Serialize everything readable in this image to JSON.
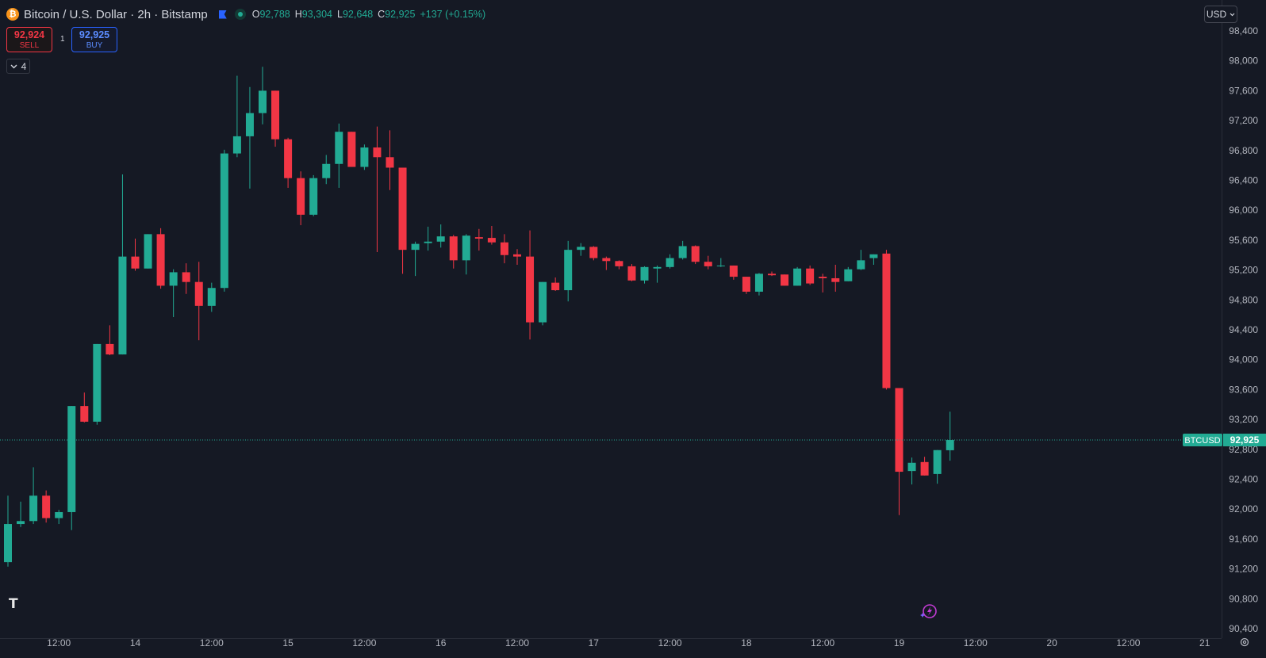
{
  "header": {
    "coin_icon": "bitcoin-icon",
    "symbol_title": "Bitcoin / U.S. Dollar · 2h · Bitstamp",
    "ohlc": [
      {
        "key": "O",
        "value": "92,788"
      },
      {
        "key": "H",
        "value": "93,304"
      },
      {
        "key": "L",
        "value": "92,648"
      },
      {
        "key": "C",
        "value": "92,925"
      }
    ],
    "change": "+137 (+0.15%)"
  },
  "trade": {
    "sell_price": "92,924",
    "sell_label": "SELL",
    "spread": "1",
    "buy_price": "92,925",
    "buy_label": "BUY"
  },
  "indicators_toggle": {
    "count": "4"
  },
  "currency_select": {
    "value": "USD"
  },
  "colors": {
    "background": "#151924",
    "up": "#22ab94",
    "down": "#f23645",
    "axis_text": "#b2b5be",
    "last_price_line": "#22ab94"
  },
  "chart_data": {
    "type": "candlestick",
    "symbol": "BTCUSD",
    "last_price": 92925,
    "last_price_label": "92,925",
    "y_axis": {
      "range": [
        90400,
        98400
      ],
      "ticks": [
        "98,400",
        "98,000",
        "97,600",
        "97,200",
        "96,800",
        "96,400",
        "96,000",
        "95,600",
        "95,200",
        "94,800",
        "94,400",
        "94,000",
        "93,600",
        "93,200",
        "92,800",
        "92,400",
        "92,000",
        "91,600",
        "91,200",
        "90,800",
        "90,400"
      ]
    },
    "x_axis": {
      "ticks": [
        {
          "label": "12:00",
          "bar": 4
        },
        {
          "label": "14",
          "bar": 10
        },
        {
          "label": "12:00",
          "bar": 16
        },
        {
          "label": "15",
          "bar": 22
        },
        {
          "label": "12:00",
          "bar": 28
        },
        {
          "label": "16",
          "bar": 34
        },
        {
          "label": "12:00",
          "bar": 40
        },
        {
          "label": "17",
          "bar": 46
        },
        {
          "label": "12:00",
          "bar": 52
        },
        {
          "label": "18",
          "bar": 58
        },
        {
          "label": "12:00",
          "bar": 64
        },
        {
          "label": "19",
          "bar": 70
        },
        {
          "label": "12:00",
          "bar": 76
        },
        {
          "label": "20",
          "bar": 82
        },
        {
          "label": "12:00",
          "bar": 88
        },
        {
          "label": "21",
          "bar": 94
        }
      ]
    },
    "grid": false,
    "candles": [
      {
        "o": 91290,
        "h": 92180,
        "l": 91230,
        "c": 91800
      },
      {
        "o": 91800,
        "h": 92100,
        "l": 91760,
        "c": 91840
      },
      {
        "o": 91840,
        "h": 92560,
        "l": 91800,
        "c": 92180
      },
      {
        "o": 92180,
        "h": 92250,
        "l": 91820,
        "c": 91880
      },
      {
        "o": 91880,
        "h": 91990,
        "l": 91800,
        "c": 91960
      },
      {
        "o": 91960,
        "h": 93380,
        "l": 91720,
        "c": 93380
      },
      {
        "o": 93380,
        "h": 93560,
        "l": 93160,
        "c": 93170
      },
      {
        "o": 93170,
        "h": 94210,
        "l": 93130,
        "c": 94210
      },
      {
        "o": 94210,
        "h": 94460,
        "l": 94060,
        "c": 94070
      },
      {
        "o": 94070,
        "h": 96480,
        "l": 94070,
        "c": 95380
      },
      {
        "o": 95380,
        "h": 95620,
        "l": 95190,
        "c": 95220
      },
      {
        "o": 95220,
        "h": 95680,
        "l": 95220,
        "c": 95680
      },
      {
        "o": 95680,
        "h": 95760,
        "l": 94950,
        "c": 94990
      },
      {
        "o": 94990,
        "h": 95210,
        "l": 94570,
        "c": 95170
      },
      {
        "o": 95170,
        "h": 95290,
        "l": 94880,
        "c": 95040
      },
      {
        "o": 95040,
        "h": 95310,
        "l": 94260,
        "c": 94720
      },
      {
        "o": 94720,
        "h": 95030,
        "l": 94640,
        "c": 94960
      },
      {
        "o": 94960,
        "h": 96810,
        "l": 94910,
        "c": 96760
      },
      {
        "o": 96760,
        "h": 97800,
        "l": 96710,
        "c": 96990
      },
      {
        "o": 96990,
        "h": 97650,
        "l": 96290,
        "c": 97300
      },
      {
        "o": 97300,
        "h": 97920,
        "l": 97150,
        "c": 97600
      },
      {
        "o": 97600,
        "h": 97600,
        "l": 96850,
        "c": 96950
      },
      {
        "o": 96950,
        "h": 96970,
        "l": 96300,
        "c": 96430
      },
      {
        "o": 96430,
        "h": 96520,
        "l": 95800,
        "c": 95940
      },
      {
        "o": 95940,
        "h": 96470,
        "l": 95920,
        "c": 96430
      },
      {
        "o": 96430,
        "h": 96740,
        "l": 96350,
        "c": 96620
      },
      {
        "o": 96620,
        "h": 97160,
        "l": 96300,
        "c": 97050
      },
      {
        "o": 97050,
        "h": 97050,
        "l": 96580,
        "c": 96580
      },
      {
        "o": 96580,
        "h": 96880,
        "l": 96540,
        "c": 96840
      },
      {
        "o": 96840,
        "h": 97120,
        "l": 95440,
        "c": 96710
      },
      {
        "o": 96710,
        "h": 97070,
        "l": 96270,
        "c": 96570
      },
      {
        "o": 96570,
        "h": 96570,
        "l": 95150,
        "c": 95470
      },
      {
        "o": 95470,
        "h": 95580,
        "l": 95120,
        "c": 95550
      },
      {
        "o": 95560,
        "h": 95780,
        "l": 95460,
        "c": 95580
      },
      {
        "o": 95580,
        "h": 95810,
        "l": 95500,
        "c": 95650
      },
      {
        "o": 95650,
        "h": 95670,
        "l": 95220,
        "c": 95330
      },
      {
        "o": 95330,
        "h": 95680,
        "l": 95140,
        "c": 95660
      },
      {
        "o": 95640,
        "h": 95750,
        "l": 95460,
        "c": 95620
      },
      {
        "o": 95630,
        "h": 95790,
        "l": 95540,
        "c": 95570
      },
      {
        "o": 95570,
        "h": 95680,
        "l": 95290,
        "c": 95400
      },
      {
        "o": 95410,
        "h": 95480,
        "l": 95270,
        "c": 95380
      },
      {
        "o": 95380,
        "h": 95730,
        "l": 94270,
        "c": 94500
      },
      {
        "o": 94500,
        "h": 95040,
        "l": 94460,
        "c": 95040
      },
      {
        "o": 95030,
        "h": 95100,
        "l": 94920,
        "c": 94930
      },
      {
        "o": 94930,
        "h": 95590,
        "l": 94780,
        "c": 95470
      },
      {
        "o": 95470,
        "h": 95560,
        "l": 95390,
        "c": 95510
      },
      {
        "o": 95510,
        "h": 95520,
        "l": 95330,
        "c": 95360
      },
      {
        "o": 95360,
        "h": 95380,
        "l": 95200,
        "c": 95320
      },
      {
        "o": 95320,
        "h": 95330,
        "l": 95210,
        "c": 95250
      },
      {
        "o": 95250,
        "h": 95280,
        "l": 95050,
        "c": 95060
      },
      {
        "o": 95060,
        "h": 95250,
        "l": 95020,
        "c": 95240
      },
      {
        "o": 95220,
        "h": 95260,
        "l": 95030,
        "c": 95240
      },
      {
        "o": 95240,
        "h": 95410,
        "l": 95220,
        "c": 95360
      },
      {
        "o": 95360,
        "h": 95590,
        "l": 95340,
        "c": 95520
      },
      {
        "o": 95520,
        "h": 95530,
        "l": 95280,
        "c": 95310
      },
      {
        "o": 95310,
        "h": 95390,
        "l": 95210,
        "c": 95250
      },
      {
        "o": 95260,
        "h": 95360,
        "l": 95240,
        "c": 95260
      },
      {
        "o": 95260,
        "h": 95260,
        "l": 95070,
        "c": 95110
      },
      {
        "o": 95110,
        "h": 95110,
        "l": 94880,
        "c": 94910
      },
      {
        "o": 94910,
        "h": 95160,
        "l": 94860,
        "c": 95150
      },
      {
        "o": 95150,
        "h": 95180,
        "l": 95120,
        "c": 95130
      },
      {
        "o": 95140,
        "h": 95140,
        "l": 94990,
        "c": 94990
      },
      {
        "o": 94990,
        "h": 95240,
        "l": 94990,
        "c": 95220
      },
      {
        "o": 95220,
        "h": 95260,
        "l": 95000,
        "c": 95020
      },
      {
        "o": 95110,
        "h": 95150,
        "l": 94900,
        "c": 95090
      },
      {
        "o": 95090,
        "h": 95270,
        "l": 94910,
        "c": 95040
      },
      {
        "o": 95050,
        "h": 95240,
        "l": 95050,
        "c": 95210
      },
      {
        "o": 95210,
        "h": 95470,
        "l": 95200,
        "c": 95330
      },
      {
        "o": 95360,
        "h": 95410,
        "l": 95270,
        "c": 95410
      },
      {
        "o": 95420,
        "h": 95470,
        "l": 93600,
        "c": 93620
      },
      {
        "o": 93620,
        "h": 93620,
        "l": 91920,
        "c": 92500
      },
      {
        "o": 92510,
        "h": 92690,
        "l": 92330,
        "c": 92620
      },
      {
        "o": 92630,
        "h": 92700,
        "l": 92450,
        "c": 92450
      },
      {
        "o": 92470,
        "h": 92790,
        "l": 92340,
        "c": 92790
      },
      {
        "o": 92788,
        "h": 93304,
        "l": 92648,
        "c": 92925
      }
    ]
  }
}
